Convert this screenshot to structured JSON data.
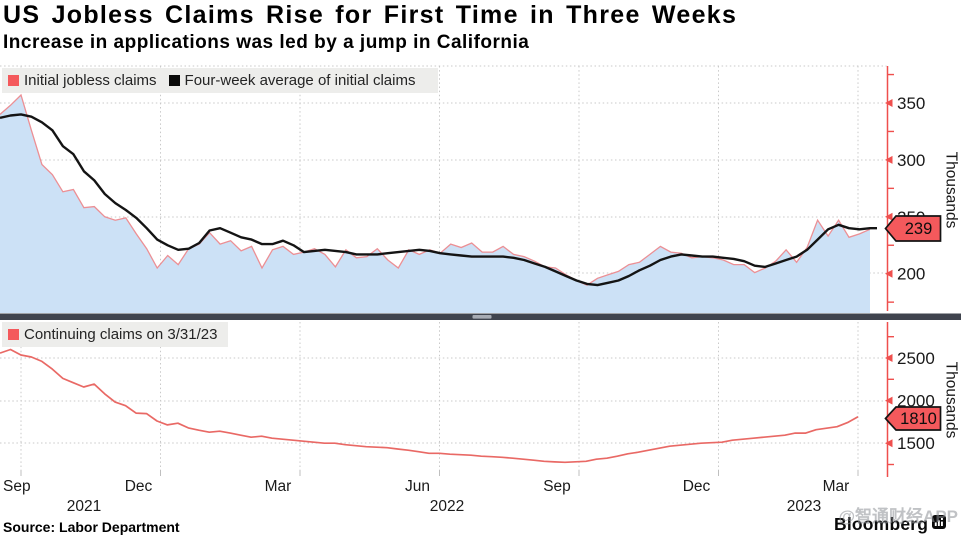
{
  "header": {
    "title": "US Jobless Claims Rise for First Time in Three Weeks",
    "subtitle": "Increase in applications was led by a jump in California"
  },
  "colors": {
    "accent_red": "#EF4F4D",
    "badge_red": "#F4595C",
    "area_fill": "#CCE1F6",
    "area_stroke": "#EC8F94",
    "avg_line": "#141414",
    "continuing_line": "#E96965",
    "grid": "#C9C9C9",
    "legend_bg": "#EDEDEB",
    "divider": "#40444E"
  },
  "chart_data": [
    {
      "type": "area",
      "panel": "top",
      "title": "Initial jobless claims vs four-week average",
      "x_unit": "week",
      "x_range": "Aug 2021 - Apr 2023",
      "ylabel": "Thousands",
      "yticks_major": [
        350,
        300,
        250,
        200
      ],
      "yticks_minor": [
        375,
        325,
        275,
        225,
        175
      ],
      "ylim_implied": [
        163,
        385
      ],
      "legend": [
        "Initial jobless claims",
        "Four-week average of initial claims"
      ],
      "badge": {
        "label": "239",
        "value": 239
      },
      "series": [
        {
          "name": "Initial jobless claims",
          "style": "area",
          "values": [
            340,
            348,
            357,
            326,
            296,
            287,
            272,
            274,
            258,
            259,
            250,
            247,
            249,
            235,
            222,
            205,
            216,
            208,
            222,
            226,
            236,
            226,
            229,
            220,
            224,
            205,
            221,
            224,
            217,
            219,
            222,
            217,
            206,
            221,
            214,
            215,
            222,
            212,
            205,
            221,
            217,
            221,
            218,
            226,
            223,
            227,
            219,
            219,
            224,
            217,
            215,
            211,
            206,
            205,
            199,
            194,
            190,
            196,
            199,
            202,
            208,
            210,
            217,
            224,
            219,
            218,
            214,
            215,
            214,
            212,
            208,
            208,
            201,
            205,
            211,
            221,
            210,
            223,
            247,
            233,
            247,
            232,
            235,
            239
          ]
        },
        {
          "name": "Four-week average of initial claims",
          "style": "line",
          "values": [
            337,
            339,
            340,
            338,
            333,
            326,
            312,
            305,
            290,
            282,
            270,
            262,
            256,
            249,
            240,
            230,
            225,
            221,
            222,
            227,
            238,
            240,
            236,
            232,
            230,
            226,
            226,
            229,
            225,
            219,
            220,
            221,
            220,
            219,
            217,
            217,
            217,
            218,
            219,
            220,
            221,
            220,
            218,
            217,
            216,
            215,
            215,
            215,
            215,
            214,
            212,
            209,
            206,
            202,
            198,
            194,
            191,
            190,
            192,
            194,
            198,
            203,
            207,
            212,
            215,
            217,
            216,
            215,
            215,
            214,
            213,
            211,
            207,
            206,
            209,
            212,
            215,
            221,
            230,
            239,
            243,
            240,
            239,
            240
          ]
        }
      ]
    },
    {
      "type": "line",
      "panel": "bottom",
      "title": "Continuing claims",
      "x_unit": "week",
      "x_range": "Aug 2021 - Mar 2023",
      "ylabel": "Thousands",
      "yticks_major": [
        2500,
        2000,
        1500
      ],
      "yticks_minor": [
        2750,
        2250,
        1750,
        1250
      ],
      "ylim_implied": [
        1100,
        2920
      ],
      "legend": [
        "Continuing claims on 3/31/23"
      ],
      "badge": {
        "label": "1810",
        "value": 1810
      },
      "series": [
        {
          "name": "Continuing claims on 3/31/23",
          "style": "line",
          "values": [
            2558,
            2600,
            2535,
            2512,
            2460,
            2370,
            2260,
            2210,
            2160,
            2194,
            2080,
            1982,
            1940,
            1853,
            1847,
            1760,
            1715,
            1735,
            1680,
            1653,
            1629,
            1641,
            1618,
            1594,
            1571,
            1582,
            1559,
            1547,
            1535,
            1524,
            1512,
            1500,
            1500,
            1482,
            1471,
            1459,
            1453,
            1447,
            1432,
            1418,
            1400,
            1382,
            1382,
            1371,
            1365,
            1359,
            1347,
            1341,
            1335,
            1324,
            1312,
            1300,
            1288,
            1280,
            1276,
            1282,
            1288,
            1312,
            1324,
            1347,
            1376,
            1394,
            1418,
            1441,
            1465,
            1476,
            1488,
            1500,
            1506,
            1512,
            1535,
            1547,
            1559,
            1571,
            1582,
            1594,
            1618,
            1618,
            1659,
            1676,
            1694,
            1742,
            1810
          ]
        }
      ]
    }
  ],
  "x_axis": {
    "tick_labels": [
      "Sep",
      "Dec",
      "Mar",
      "Jun",
      "Sep",
      "Dec",
      "Mar"
    ],
    "year_labels": [
      "2021",
      "2022",
      "2023"
    ]
  },
  "footer": {
    "source": "Source: Labor Department",
    "brand": "Bloomberg",
    "watermark": "@智通财经APP"
  }
}
